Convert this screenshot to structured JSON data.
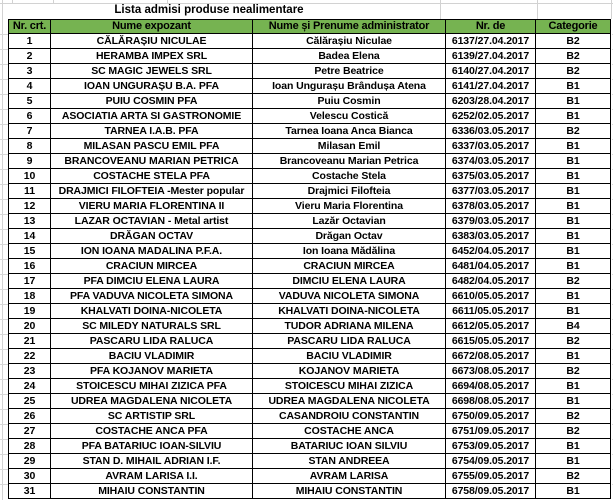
{
  "title": "Lista admisi produse nealimentare",
  "colors": {
    "header_bg": "#76b351",
    "table_border": "#000000",
    "gridline": "#d2d2d2",
    "text": "#000000"
  },
  "table": {
    "headers": [
      "Nr. crt.",
      "Nume expozant",
      "Nume și Prenume administrator",
      "Nr. de",
      "Categorie"
    ],
    "rows": [
      [
        "1",
        "CĂLĂRAȘIU NICULAE",
        "Călărașiu Niculae",
        "6137/27.04.2017",
        "B2"
      ],
      [
        "2",
        "HERAMBA IMPEX SRL",
        "Badea Elena",
        "6139/27.04.2017",
        "B2"
      ],
      [
        "3",
        "SC MAGIC JEWELS SRL",
        "Petre Beatrice",
        "6140/27.04.2017",
        "B2"
      ],
      [
        "4",
        "IOAN UNGURAȘU B.A. PFA",
        "Ioan Ungurașu Brândușa Atena",
        "6141/27.04.2017",
        "B1"
      ],
      [
        "5",
        "PUIU COSMIN PFA",
        "Puiu Cosmin",
        "6203/28.04.2017",
        "B1"
      ],
      [
        "6",
        "ASOCIATIA ARTA SI GASTRONOMIE",
        "Velescu Costică",
        "6252/02.05.2017",
        "B1"
      ],
      [
        "7",
        "TARNEA I.A.B. PFA",
        "Tarnea Ioana Anca Bianca",
        "6336/03.05.2017",
        "B2"
      ],
      [
        "8",
        "MILASAN PASCU EMIL PFA",
        "Milasan Emil",
        "6337/03.05.2017",
        "B1"
      ],
      [
        "9",
        "BRANCOVEANU MARIAN PETRICA",
        "Brancoveanu Marian Petrica",
        "6374/03.05.2017",
        "B1"
      ],
      [
        "10",
        "COSTACHE STELA PFA",
        "Costache Stela",
        "6375/03.05.2017",
        "B1"
      ],
      [
        "11",
        "DRAJMICI FILOFTEIA -Mester popular",
        "Drajmici Filofteia",
        "6377/03.05.2017",
        "B1"
      ],
      [
        "12",
        "VIERU MARIA FLORENTINA II",
        "Vieru Maria Florentina",
        "6378/03.05.2017",
        "B1"
      ],
      [
        "13",
        "LAZAR OCTAVIAN - Metal artist",
        "Lazăr Octavian",
        "6379/03.05.2017",
        "B1"
      ],
      [
        "14",
        "DRĂGAN OCTAV",
        "Drăgan Octav",
        "6383/03.05.2017",
        "B1"
      ],
      [
        "15",
        "ION IOANA MADALINA P.F.A.",
        "Ion Ioana Mădălina",
        "6452/04.05.2017",
        "B1"
      ],
      [
        "16",
        "CRACIUN MIRCEA",
        "CRACIUN MIRCEA",
        "6481/04.05.2017",
        "B1"
      ],
      [
        "17",
        "PFA DIMCIU ELENA LAURA",
        "DIMCIU ELENA LAURA",
        "6482/04.05.2017",
        "B2"
      ],
      [
        "18",
        "PFA VADUVA NICOLETA SIMONA",
        "VADUVA NICOLETA SIMONA",
        "6610/05.05.2017",
        "B1"
      ],
      [
        "19",
        "KHALVATI DOINA-NICOLETA",
        "KHALVATI DOINA-NICOLETA",
        "6611/05.05.2017",
        "B1"
      ],
      [
        "20",
        "SC MILEDY NATURALS SRL",
        "TUDOR ADRIANA MILENA",
        "6612/05.05.2017",
        "B4"
      ],
      [
        "21",
        "PASCARU LIDA RALUCA",
        "PASCARU LIDA RALUCA",
        "6615/05.05.2017",
        "B2"
      ],
      [
        "22",
        "BACIU VLADIMIR",
        "BACIU VLADIMIR",
        "6672/08.05.2017",
        "B1"
      ],
      [
        "23",
        "PFA KOJANOV MARIETA",
        "KOJANOV MARIETA",
        "6673/08.05.2017",
        "B2"
      ],
      [
        "24",
        "STOICESCU MIHAI ZIZICA PFA",
        "STOICESCU MIHAI ZIZICA",
        "6694/08.05.2017",
        "B1"
      ],
      [
        "25",
        "UDREA MAGDALENA NICOLETA",
        "UDREA MAGDALENA NICOLETA",
        "6698/08.05.2017",
        "B1"
      ],
      [
        "26",
        "SC ARTISTIP SRL",
        "CASANDROIU CONSTANTIN",
        "6750/09.05.2017",
        "B2"
      ],
      [
        "27",
        "COSTACHE ANCA PFA",
        "COSTACHE ANCA",
        "6751/09.05.2017",
        "B2"
      ],
      [
        "28",
        "PFA BATARIUC IOAN-SILVIU",
        "BATARIUC IOAN SILVIU",
        "6753/09.05.2017",
        "B1"
      ],
      [
        "29",
        "STAN D. MIHAIL ADRIAN I.F.",
        "STAN ANDREEA",
        "6754/09.05.2017",
        "B1"
      ],
      [
        "30",
        "AVRAM LARISA I.I.",
        "AVRAM LARISA",
        "6755/09.05.2017",
        "B2"
      ],
      [
        "31",
        "MIHAIU CONSTANTIN",
        "MIHAIU CONSTANTIN",
        "6758/09.05.2017",
        "B1"
      ]
    ],
    "cell_names": [
      "row-number-cell",
      "expozant-cell",
      "administrator-cell",
      "registration-number-cell",
      "category-cell"
    ]
  }
}
